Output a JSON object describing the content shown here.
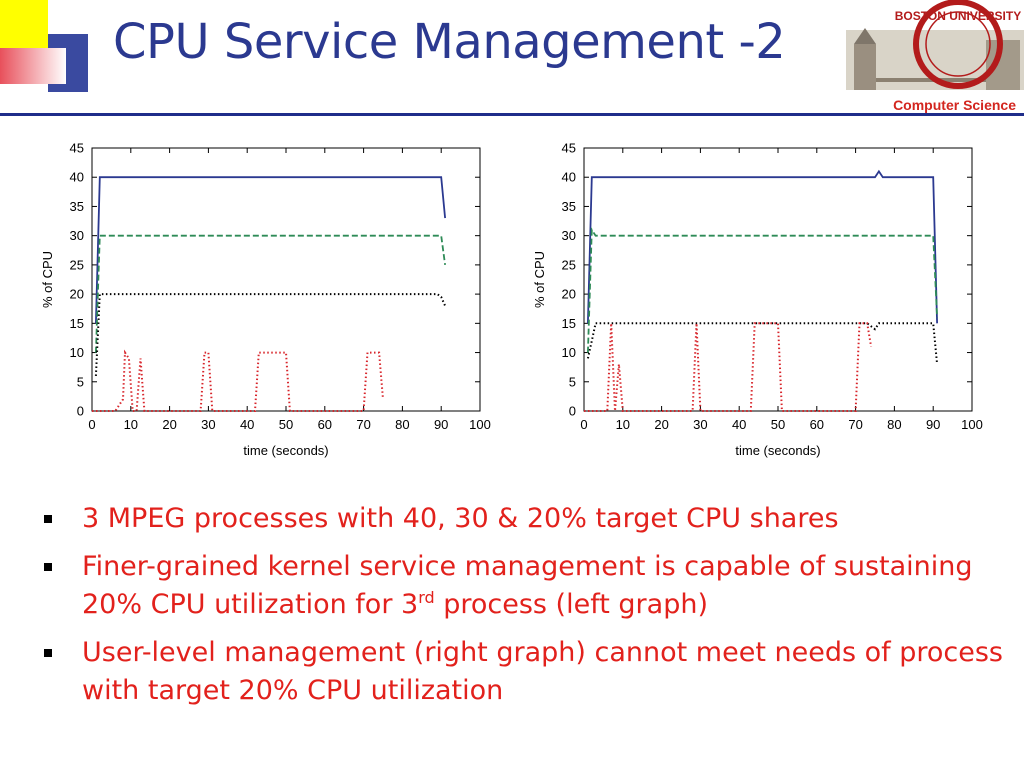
{
  "slide": {
    "title": "CPU Service Management -2",
    "department": "Computer Science",
    "logo_text": "BOSTON UNIVERSITY"
  },
  "bullets": [
    {
      "text": "3 MPEG processes with 40, 30 & 20% target CPU shares"
    },
    {
      "text_pre": "Finer-grained kernel service management is capable of sustaining 20% CPU utilization for 3",
      "sup": "rd",
      "text_post": " process (left graph)"
    },
    {
      "text": "User-level management (right graph) cannot meet needs of process with target 20% CPU utilization"
    }
  ],
  "colors": {
    "title": "#2b3990",
    "bullet_text": "#e2211c",
    "rule": "#1f2d8a",
    "department": "#d3261f"
  },
  "chart_data": [
    {
      "type": "line",
      "xlabel": "time (seconds)",
      "ylabel": "% of CPU",
      "xlim": [
        0,
        100
      ],
      "ylim": [
        0,
        45
      ],
      "xticks": [
        0,
        10,
        20,
        30,
        40,
        50,
        60,
        70,
        80,
        90,
        100
      ],
      "yticks": [
        0,
        5,
        10,
        15,
        20,
        25,
        30,
        35,
        40,
        45
      ],
      "series": [
        {
          "color": "#2b3990",
          "style": "solid",
          "points": [
            [
              1,
              15
            ],
            [
              2,
              40
            ],
            [
              90,
              40
            ],
            [
              91,
              33
            ]
          ]
        },
        {
          "color": "#2e8b57",
          "style": "dashed",
          "points": [
            [
              1,
              10
            ],
            [
              2,
              30
            ],
            [
              90,
              30
            ],
            [
              91,
              25
            ]
          ]
        },
        {
          "color": "#000000",
          "style": "dotted",
          "points": [
            [
              1,
              6
            ],
            [
              2,
              20
            ],
            [
              89,
              20
            ],
            [
              90,
              19.5
            ],
            [
              91,
              18
            ]
          ]
        },
        {
          "color": "#d8262c",
          "style": "dotted",
          "points": [
            [
              0,
              0
            ],
            [
              6,
              0
            ],
            [
              8,
              2
            ],
            [
              8.5,
              10
            ],
            [
              9.5,
              9
            ],
            [
              10.5,
              0
            ],
            [
              11.5,
              0
            ],
            [
              12.5,
              9
            ],
            [
              13.5,
              0
            ],
            [
              28,
              0
            ],
            [
              29,
              10
            ],
            [
              30,
              10
            ],
            [
              31,
              0
            ],
            [
              42,
              0
            ],
            [
              43,
              10
            ],
            [
              50,
              10
            ],
            [
              51,
              0
            ],
            [
              70,
              0
            ],
            [
              71,
              10
            ],
            [
              74,
              10
            ],
            [
              75,
              2
            ]
          ]
        }
      ]
    },
    {
      "type": "line",
      "xlabel": "time (seconds)",
      "ylabel": "% of CPU",
      "xlim": [
        0,
        100
      ],
      "ylim": [
        0,
        45
      ],
      "xticks": [
        0,
        10,
        20,
        30,
        40,
        50,
        60,
        70,
        80,
        90,
        100
      ],
      "yticks": [
        0,
        5,
        10,
        15,
        20,
        25,
        30,
        35,
        40,
        45
      ],
      "series": [
        {
          "color": "#2b3990",
          "style": "solid",
          "points": [
            [
              1,
              15
            ],
            [
              2,
              40
            ],
            [
              75,
              40
            ],
            [
              76,
              41
            ],
            [
              77,
              40
            ],
            [
              90,
              40
            ],
            [
              91,
              15
            ]
          ]
        },
        {
          "color": "#2e8b57",
          "style": "dashed",
          "points": [
            [
              1,
              10
            ],
            [
              2,
              31
            ],
            [
              3,
              30
            ],
            [
              90,
              30
            ],
            [
              91,
              16
            ]
          ]
        },
        {
          "color": "#000000",
          "style": "dotted",
          "points": [
            [
              1,
              9
            ],
            [
              2,
              12
            ],
            [
              3,
              15
            ],
            [
              73,
              15
            ],
            [
              75,
              14
            ],
            [
              76,
              15
            ],
            [
              90,
              15
            ],
            [
              91,
              8
            ]
          ]
        },
        {
          "color": "#d8262c",
          "style": "dotted",
          "points": [
            [
              0,
              0
            ],
            [
              6,
              0
            ],
            [
              7,
              15
            ],
            [
              8,
              0
            ],
            [
              9,
              8
            ],
            [
              10,
              0
            ],
            [
              28,
              0
            ],
            [
              29,
              15
            ],
            [
              30,
              0
            ],
            [
              43,
              0
            ],
            [
              44,
              15
            ],
            [
              50,
              15
            ],
            [
              51,
              0
            ],
            [
              70,
              0
            ],
            [
              71,
              15
            ],
            [
              73,
              15
            ],
            [
              74,
              11
            ]
          ]
        }
      ]
    }
  ]
}
